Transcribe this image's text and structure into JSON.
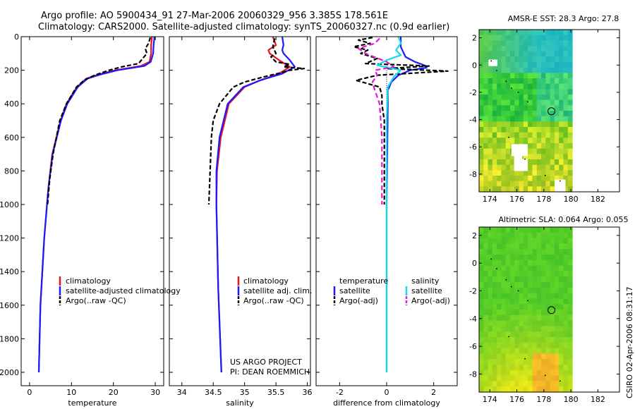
{
  "figure": {
    "title_line1": "Argo profile: AO 5900434_91 27-Mar-2006 20060329_956 3.385S 178.561E",
    "title_line2": "Climatology: CARS2000. Satellite-adjusted climatology: synTS_20060327.nc (0.9d earlier)",
    "side_note": "CSIRO 02-Apr-2006 08:31:17",
    "credit_line1": "US ARGO PROJECT",
    "credit_line2": "PI: DEAN ROEMMICH"
  },
  "colors": {
    "climatology": "#e8141e",
    "satellite": "#1a1aff",
    "argo": "#000000",
    "sat_salinity": "#17d9e8",
    "argo_salinity": "#e619d6"
  },
  "chart_data": [
    {
      "type": "line",
      "panel": "temperature",
      "xlabel": "temperature",
      "ylabel": "",
      "xlim": [
        -2,
        32
      ],
      "ylim": [
        2080,
        0
      ],
      "xticks": [
        0,
        10,
        20,
        30
      ],
      "xtick_labels": [
        "0",
        "10",
        "20",
        "30"
      ],
      "yticks": [
        0,
        200,
        400,
        600,
        800,
        1000,
        1200,
        1400,
        1600,
        1800,
        2000
      ],
      "ytick_labels": [
        "0",
        "200",
        "400",
        "600",
        "800",
        "1000",
        "1200",
        "1400",
        "1600",
        "1800",
        "2000"
      ],
      "legend": [
        "climatology",
        "satellite-adjusted climatology",
        "Argo(..raw -QC)"
      ],
      "series": [
        {
          "name": "climatology",
          "color": "#e8141e",
          "dash": "",
          "y": [
            0,
            50,
            100,
            150,
            175,
            200,
            225,
            250,
            300,
            400,
            500,
            700,
            900,
            1200,
            1600,
            2000
          ],
          "x": [
            29.2,
            29.0,
            29.0,
            28.6,
            26.5,
            20.5,
            16.5,
            13.5,
            11.3,
            8.8,
            7.4,
            5.4,
            4.5,
            3.5,
            2.6,
            2.2
          ]
        },
        {
          "name": "satellite-adjusted climatology",
          "color": "#1a1aff",
          "dash": "",
          "y": [
            0,
            50,
            100,
            150,
            175,
            200,
            225,
            250,
            300,
            400,
            500,
            700,
            900,
            1200,
            1600,
            2000
          ],
          "x": [
            29.8,
            29.6,
            29.5,
            28.9,
            27.4,
            21.0,
            17.0,
            13.8,
            11.5,
            9.0,
            7.5,
            5.5,
            4.5,
            3.5,
            2.6,
            2.2
          ]
        },
        {
          "name": "Argo(..raw -QC)",
          "color": "#000000",
          "dash": "6,3",
          "y": [
            5,
            40,
            70,
            100,
            130,
            160,
            180,
            200,
            230,
            260,
            300,
            400,
            500,
            700,
            850,
            1000
          ],
          "x": [
            28.8,
            28.4,
            27.6,
            28.0,
            27.0,
            26.0,
            22.0,
            19.0,
            15.5,
            13.0,
            11.2,
            8.8,
            7.2,
            5.6,
            4.8,
            4.3
          ]
        }
      ]
    },
    {
      "type": "line",
      "panel": "salinity",
      "xlabel": "salinity",
      "ylabel": "",
      "xlim": [
        33.8,
        36.05
      ],
      "ylim": [
        2080,
        0
      ],
      "xticks": [
        34,
        34.5,
        35,
        35.5,
        36
      ],
      "xtick_labels": [
        "34",
        "34.5",
        "35",
        "35.5",
        "36"
      ],
      "legend": [
        "climatology",
        "satellite adj. clim.",
        "Argo(..raw -QC)"
      ],
      "series": [
        {
          "name": "climatology",
          "color": "#e8141e",
          "dash": "",
          "y": [
            0,
            50,
            80,
            100,
            140,
            180,
            220,
            260,
            300,
            400,
            600,
            800,
            1000,
            1500,
            2000
          ],
          "x": [
            35.45,
            35.5,
            35.38,
            35.4,
            35.55,
            35.72,
            35.55,
            35.25,
            35.0,
            34.75,
            34.62,
            34.56,
            34.55,
            34.58,
            34.63
          ]
        },
        {
          "name": "satellite adj. clim.",
          "color": "#1a1aff",
          "dash": "",
          "y": [
            0,
            50,
            80,
            100,
            140,
            180,
            220,
            260,
            300,
            400,
            600,
            800,
            1000,
            1500,
            2000
          ],
          "x": [
            35.6,
            35.62,
            35.6,
            35.62,
            35.72,
            35.8,
            35.6,
            35.25,
            34.98,
            34.73,
            34.6,
            34.55,
            34.55,
            34.58,
            34.63
          ]
        },
        {
          "name": "Argo(..raw -QC)",
          "color": "#000000",
          "dash": "6,3",
          "y": [
            10,
            60,
            100,
            120,
            150,
            165,
            180,
            190,
            200,
            215,
            240,
            270,
            300,
            400,
            500,
            600,
            800,
            900,
            1000
          ],
          "x": [
            35.48,
            35.45,
            35.5,
            35.42,
            35.5,
            35.72,
            35.62,
            35.95,
            35.72,
            35.58,
            35.3,
            35.0,
            34.82,
            34.6,
            34.5,
            34.47,
            34.45,
            34.44,
            34.43
          ]
        }
      ]
    },
    {
      "type": "line",
      "panel": "difference",
      "xlabel": "difference from climatology",
      "ylabel": "",
      "xlim": [
        -3.0,
        3.0
      ],
      "ylim": [
        2080,
        0
      ],
      "xticks": [
        -2,
        0,
        2
      ],
      "xtick_labels": [
        "-2",
        "0",
        "2"
      ],
      "legend_temperature_title": "temperature",
      "legend_salinity_title": "salinity",
      "legend": [
        "satellite",
        "Argo(-adj)",
        "satellite",
        "Argo(-adj)"
      ],
      "series": [
        {
          "name": "temperature satellite",
          "color": "#1a1aff",
          "dash": "",
          "y": [
            0,
            60,
            120,
            150,
            170,
            185,
            200,
            230,
            270,
            320,
            400,
            1000,
            2000
          ],
          "x": [
            0.6,
            0.6,
            0.8,
            1.2,
            1.6,
            1.7,
            1.0,
            0.5,
            0.2,
            0.05,
            0.05,
            0.0,
            0.0
          ]
        },
        {
          "name": "temperature Argo(-adj)",
          "color": "#000000",
          "dash": "6,3",
          "y": [
            5,
            20,
            40,
            60,
            80,
            100,
            130,
            160,
            175,
            190,
            205,
            230,
            260,
            300,
            350,
            400,
            500,
            600,
            800,
            1000
          ],
          "x": [
            -0.6,
            -1.2,
            -0.7,
            -1.4,
            -0.8,
            -1.1,
            -0.4,
            -0.9,
            1.8,
            0.0,
            2.6,
            -0.4,
            -1.3,
            -0.3,
            -0.2,
            -0.2,
            -0.1,
            -0.1,
            -0.1,
            -0.1
          ]
        },
        {
          "name": "salinity satellite",
          "color": "#17d9e8",
          "dash": "",
          "y": [
            0,
            40,
            80,
            110,
            140,
            170,
            200,
            240,
            300,
            500,
            1000,
            2000
          ],
          "x": [
            0.5,
            0.6,
            0.4,
            0.6,
            0.0,
            -0.4,
            0.6,
            0.3,
            0.05,
            0.0,
            0.0,
            0.0
          ]
        },
        {
          "name": "salinity Argo(-adj)",
          "color": "#e619d6",
          "dash": "7,4",
          "y": [
            10,
            40,
            70,
            100,
            150,
            180,
            200,
            230,
            270,
            320,
            400,
            600,
            800,
            1000
          ],
          "x": [
            -0.3,
            -0.5,
            -1.2,
            -0.9,
            0.0,
            0.3,
            -0.5,
            -0.4,
            -0.6,
            -0.5,
            -0.3,
            -0.2,
            -0.2,
            -0.2
          ]
        }
      ]
    },
    {
      "type": "heatmap",
      "panel": "sst-map",
      "title": "AMSR-E SST: 28.3 Argo: 27.8",
      "xlim": [
        173.2,
        183.6
      ],
      "ylim": [
        -9.3,
        2.6
      ],
      "xticks": [
        174,
        176,
        178,
        180,
        182
      ],
      "xtick_labels": [
        "174",
        "176",
        "178",
        "180",
        "182"
      ],
      "yticks": [
        2,
        0,
        -2,
        -4,
        -6,
        -8
      ],
      "ytick_labels": [
        "2",
        "0",
        "-2",
        "-4",
        "-6",
        "-8"
      ],
      "data_extent_lon": [
        173.2,
        180.1
      ],
      "marker": {
        "lon": 178.56,
        "lat": -3.39
      }
    },
    {
      "type": "heatmap",
      "panel": "sla-map",
      "title": "Altimetric SLA: 0.064 Argo: 0.055",
      "xlim": [
        173.2,
        183.6
      ],
      "ylim": [
        -9.3,
        2.6
      ],
      "xticks": [
        174,
        176,
        178,
        180,
        182
      ],
      "xtick_labels": [
        "174",
        "176",
        "178",
        "180",
        "182"
      ],
      "yticks": [
        2,
        0,
        -2,
        -4,
        -6,
        -8
      ],
      "ytick_labels": [
        "2",
        "0",
        "-2",
        "-4",
        "-6",
        "-8"
      ],
      "data_extent_lon": [
        173.2,
        180.1
      ],
      "marker": {
        "lon": 178.56,
        "lat": -3.39
      }
    }
  ]
}
